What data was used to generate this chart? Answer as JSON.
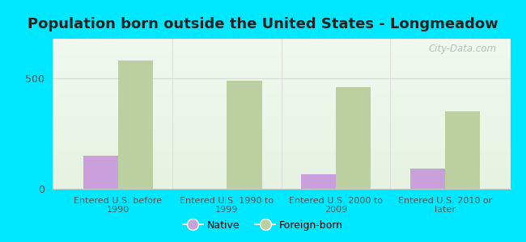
{
  "title": "Population born outside the United States - Longmeadow",
  "categories": [
    "Entered U.S. before\n1990",
    "Entered U.S. 1990 to\n1999",
    "Entered U.S. 2000 to\n2009",
    "Entered U.S. 2010 or\nlater"
  ],
  "native_values": [
    150,
    0,
    65,
    90
  ],
  "foreign_values": [
    580,
    490,
    460,
    350
  ],
  "native_color": "#c9a0dc",
  "foreign_color": "#bccfa0",
  "background_outer": "#00e8ff",
  "title_fontsize": 13,
  "title_color": "#222222",
  "yticks": [
    0,
    500
  ],
  "ylim": [
    0,
    680
  ],
  "bar_width": 0.32,
  "watermark": "City-Data.com",
  "gridline_color": "#dddddd",
  "tick_color": "#555555",
  "spine_color": "#cccccc"
}
